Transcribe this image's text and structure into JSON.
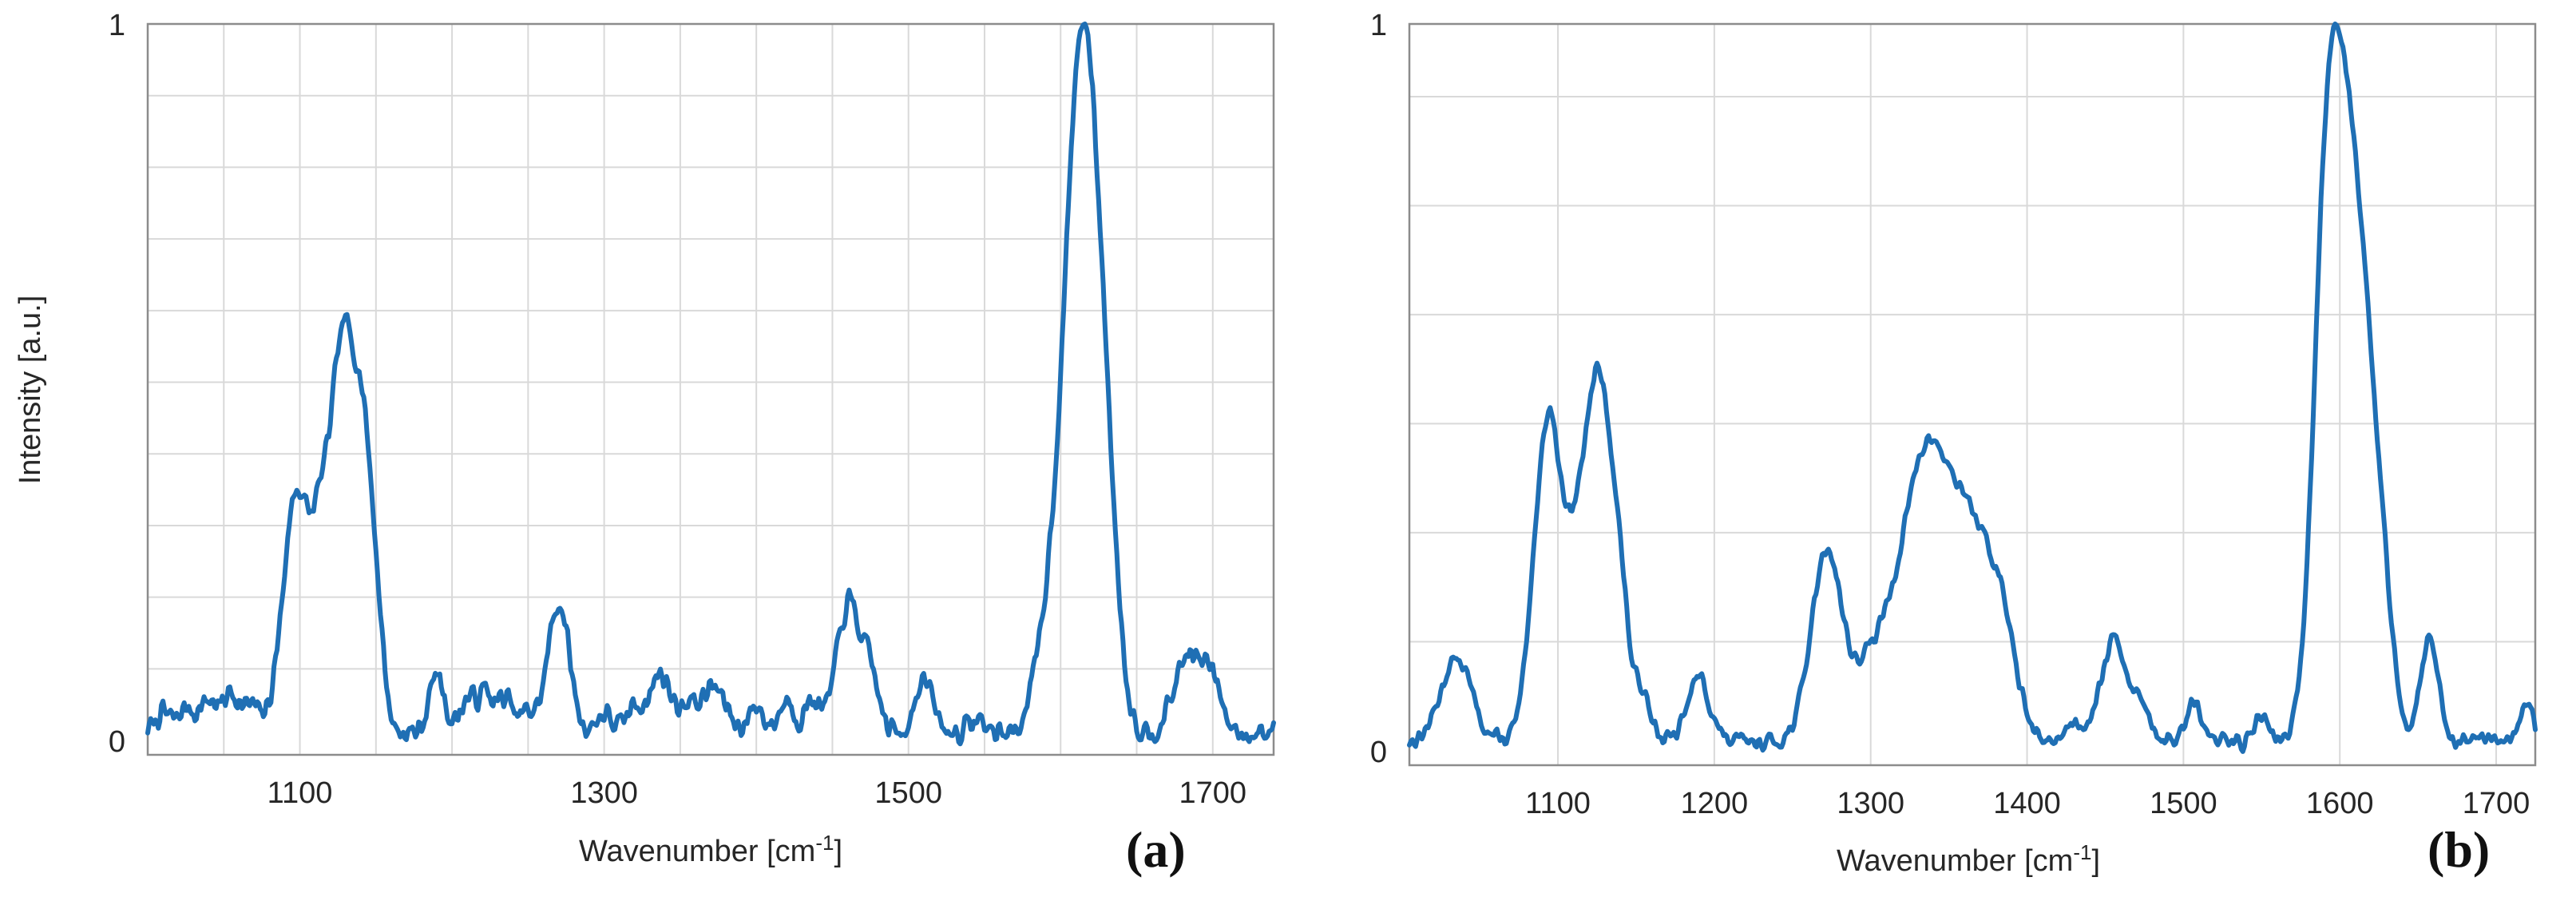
{
  "chart_data": [
    {
      "type": "line",
      "panel_label": "(a)",
      "xlabel": "Wavenumber [cm",
      "xlabel_sup": "-1",
      "xlabel_end": "]",
      "ylabel": "Intensity [a.u.]",
      "xlim": [
        1000,
        1740
      ],
      "ylim": [
        -0.02,
        1.0
      ],
      "xticks": [
        1100,
        1300,
        1500,
        1700
      ],
      "xtick_labels": [
        "1100",
        "1300",
        "1500",
        "1700"
      ],
      "yticks": [
        0,
        1
      ],
      "ytick_labels": [
        "0",
        "1"
      ],
      "xgrid": [
        1050,
        1100,
        1150,
        1200,
        1250,
        1300,
        1350,
        1400,
        1450,
        1500,
        1550,
        1600,
        1650,
        1700
      ],
      "ygrid": [
        0.1,
        0.2,
        0.3,
        0.4,
        0.5,
        0.6,
        0.7,
        0.8,
        0.9
      ],
      "grid": true,
      "color": "#1f6fb4",
      "baseline": 0.012,
      "peaks": [
        [
          1010,
          0.03,
          5
        ],
        [
          1025,
          0.035,
          5
        ],
        [
          1040,
          0.05,
          6
        ],
        [
          1055,
          0.06,
          5
        ],
        [
          1068,
          0.04,
          5
        ],
        [
          1098,
          0.37,
          9
        ],
        [
          1113,
          0.12,
          5
        ],
        [
          1129,
          0.62,
          10
        ],
        [
          1142,
          0.2,
          5
        ],
        [
          1150,
          0.16,
          5
        ],
        [
          1190,
          0.09,
          5
        ],
        [
          1210,
          0.05,
          5
        ],
        [
          1222,
          0.06,
          5
        ],
        [
          1235,
          0.05,
          5
        ],
        [
          1250,
          0.03,
          5
        ],
        [
          1270,
          0.2,
          7
        ],
        [
          1300,
          0.03,
          5
        ],
        [
          1320,
          0.04,
          5
        ],
        [
          1337,
          0.09,
          7
        ],
        [
          1355,
          0.04,
          5
        ],
        [
          1372,
          0.07,
          8
        ],
        [
          1400,
          0.04,
          5
        ],
        [
          1420,
          0.05,
          5
        ],
        [
          1437,
          0.05,
          5
        ],
        [
          1461,
          0.2,
          8
        ],
        [
          1476,
          0.07,
          5
        ],
        [
          1510,
          0.08,
          6
        ],
        [
          1545,
          0.02,
          5
        ],
        [
          1590,
          0.12,
          8
        ],
        [
          1606,
          0.46,
          9
        ],
        [
          1617,
          0.78,
          9
        ],
        [
          1630,
          0.3,
          8
        ],
        [
          1684,
          0.12,
          9
        ],
        [
          1700,
          0.07,
          6
        ]
      ],
      "noise": 0.025,
      "seed": 7
    },
    {
      "type": "line",
      "panel_label": "(b)",
      "xlabel": "Wavenumber [cm",
      "xlabel_sup": "-1",
      "xlabel_end": "]",
      "ylabel": "",
      "xlim": [
        1005,
        1725
      ],
      "ylim": [
        -0.02,
        1.0
      ],
      "xticks": [
        1100,
        1200,
        1300,
        1400,
        1500,
        1600,
        1700
      ],
      "xtick_labels": [
        "1100",
        "1200",
        "1300",
        "1400",
        "1500",
        "1600",
        "1700"
      ],
      "yticks": [
        0,
        1
      ],
      "ytick_labels": [
        "0",
        "1"
      ],
      "xgrid": [
        1100,
        1200,
        1300,
        1400,
        1500,
        1600,
        1700
      ],
      "ygrid": [
        0.15,
        0.3,
        0.45,
        0.6,
        0.75,
        0.9
      ],
      "grid": true,
      "color": "#1f6fb4",
      "baseline": 0.01,
      "peaks": [
        [
          1035,
          0.09,
          10
        ],
        [
          1094,
          0.36,
          9
        ],
        [
          1110,
          0.06,
          5
        ],
        [
          1125,
          0.4,
          10
        ],
        [
          1140,
          0.09,
          6
        ],
        [
          1155,
          0.05,
          5
        ],
        [
          1190,
          0.07,
          7
        ],
        [
          1272,
          0.21,
          10
        ],
        [
          1300,
          0.08,
          10
        ],
        [
          1318,
          0.09,
          10
        ],
        [
          1337,
          0.29,
          13
        ],
        [
          1364,
          0.22,
          13
        ],
        [
          1385,
          0.1,
          9
        ],
        [
          1430,
          0.02,
          6
        ],
        [
          1456,
          0.11,
          9
        ],
        [
          1475,
          0.03,
          5
        ],
        [
          1507,
          0.04,
          5
        ],
        [
          1550,
          0.03,
          4
        ],
        [
          1590,
          0.3,
          8
        ],
        [
          1601,
          0.6,
          11
        ],
        [
          1615,
          0.24,
          8
        ],
        [
          1627,
          0.15,
          7
        ],
        [
          1657,
          0.11,
          6
        ],
        [
          1720,
          0.04,
          4
        ]
      ],
      "noise": 0.012,
      "seed": 13
    }
  ]
}
